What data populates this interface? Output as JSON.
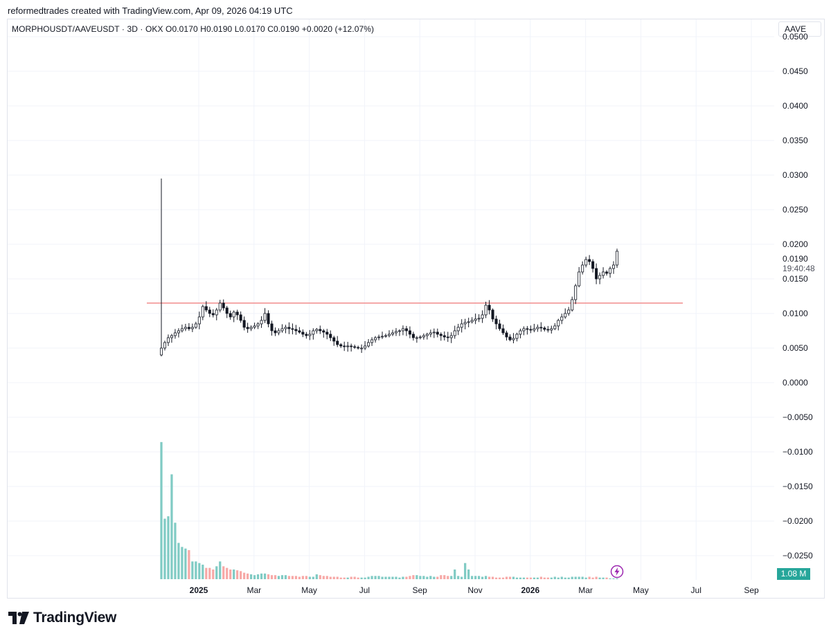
{
  "header": {
    "credit": "reformedtrades created with TradingView.com, Apr 09, 2026 04:19 UTC"
  },
  "legend": {
    "text": "MORPHOUSDT/AAVEUSDT · 3D · OKX  O0.0170  H0.0190  L0.0170  C0.0190  +0.0020 (+12.07%)"
  },
  "symbol_box": "AAVE",
  "last_price": {
    "value": "0.0190",
    "countdown": "19:40:48"
  },
  "volume_badge": "1.08 M",
  "footer": {
    "brand": "TradingView"
  },
  "icons": {
    "flash": "lightning-icon",
    "logo": "tradingview-logo-icon"
  },
  "colors": {
    "up": "#26a69a",
    "down": "#ef5350",
    "up_volume": "#80cbc4",
    "down_volume": "#f7a9a7",
    "hline": "#f28b8b",
    "accent": "#9c27b0"
  },
  "chart_data": {
    "type": "candlestick",
    "interval": "3D",
    "exchange": "OKX",
    "ylim": [
      -0.0285,
      0.0525
    ],
    "y_ticks": [
      "0.0500",
      "0.0450",
      "0.0400",
      "0.0350",
      "0.0300",
      "0.0250",
      "0.0200",
      "0.0150",
      "0.0100",
      "0.0050",
      "0.0000",
      "−0.0050",
      "−0.0100",
      "−0.0150",
      "−0.0200",
      "−0.0250"
    ],
    "x_ticks": [
      {
        "label": "2025",
        "bold": true
      },
      {
        "label": "Mar",
        "bold": false
      },
      {
        "label": "May",
        "bold": false
      },
      {
        "label": "Jul",
        "bold": false
      },
      {
        "label": "Sep",
        "bold": false
      },
      {
        "label": "Nov",
        "bold": false
      },
      {
        "label": "2026",
        "bold": true
      },
      {
        "label": "Mar",
        "bold": false
      },
      {
        "label": "May",
        "bold": false
      },
      {
        "label": "Jul",
        "bold": false
      },
      {
        "label": "Sep",
        "bold": false
      }
    ],
    "horizontal_line": 0.0115,
    "grid": true,
    "close_series": [
      0.005,
      0.0058,
      0.0065,
      0.0068,
      0.0072,
      0.0075,
      0.0078,
      0.008,
      0.0078,
      0.008,
      0.0085,
      0.0095,
      0.011,
      0.0105,
      0.01,
      0.0098,
      0.0105,
      0.0115,
      0.0108,
      0.01,
      0.0095,
      0.0102,
      0.0098,
      0.009,
      0.008,
      0.0078,
      0.008,
      0.0082,
      0.0085,
      0.009,
      0.01,
      0.0085,
      0.0075,
      0.0072,
      0.0075,
      0.0078,
      0.008,
      0.0078,
      0.0077,
      0.0075,
      0.0073,
      0.007,
      0.0068,
      0.007,
      0.0075,
      0.0077,
      0.0075,
      0.0073,
      0.007,
      0.0065,
      0.006,
      0.0055,
      0.0053,
      0.0052,
      0.0053,
      0.0052,
      0.0051,
      0.005,
      0.005,
      0.0053,
      0.0058,
      0.0062,
      0.0065,
      0.0066,
      0.0067,
      0.0068,
      0.007,
      0.0072,
      0.0074,
      0.0075,
      0.0078,
      0.0075,
      0.007,
      0.0065,
      0.0065,
      0.0066,
      0.0068,
      0.007,
      0.0072,
      0.0073,
      0.007,
      0.0068,
      0.0066,
      0.0065,
      0.0068,
      0.0075,
      0.008,
      0.0085,
      0.0087,
      0.0088,
      0.009,
      0.0092,
      0.0093,
      0.0098,
      0.0112,
      0.0105,
      0.0092,
      0.0085,
      0.0078,
      0.0072,
      0.0066,
      0.0062,
      0.0064,
      0.007,
      0.0075,
      0.0078,
      0.0077,
      0.0076,
      0.0078,
      0.008,
      0.0079,
      0.0077,
      0.0076,
      0.0078,
      0.0082,
      0.009,
      0.0095,
      0.01,
      0.0105,
      0.012,
      0.014,
      0.016,
      0.017,
      0.0178,
      0.0175,
      0.0165,
      0.015,
      0.0155,
      0.016,
      0.0158,
      0.0165,
      0.017,
      0.019
    ],
    "volume_series": [
      170,
      75,
      78,
      130,
      70,
      45,
      40,
      38,
      36,
      22,
      22,
      20,
      18,
      14,
      14,
      12,
      16,
      22,
      16,
      14,
      12,
      12,
      11,
      10,
      8,
      7,
      6,
      5,
      6,
      7,
      7,
      6,
      5,
      5,
      4,
      5,
      5,
      4,
      4,
      4,
      3,
      4,
      4,
      3,
      3,
      6,
      5,
      4,
      4,
      3,
      3,
      3,
      2,
      2,
      2,
      3,
      3,
      2,
      2,
      2,
      3,
      4,
      4,
      4,
      3,
      3,
      3,
      3,
      3,
      2,
      3,
      3,
      4,
      5,
      5,
      4,
      4,
      3,
      4,
      3,
      3,
      5,
      5,
      4,
      4,
      12,
      4,
      3,
      20,
      12,
      4,
      4,
      4,
      3,
      4,
      3,
      3,
      2,
      2,
      2,
      3,
      3,
      3,
      2,
      2,
      2,
      2,
      2,
      2,
      2,
      3,
      2,
      2,
      2,
      3,
      2,
      3,
      2,
      2,
      3,
      3,
      3,
      3,
      2,
      3,
      2,
      3,
      2,
      2,
      2,
      1,
      1,
      1,
      1,
      1
    ]
  }
}
